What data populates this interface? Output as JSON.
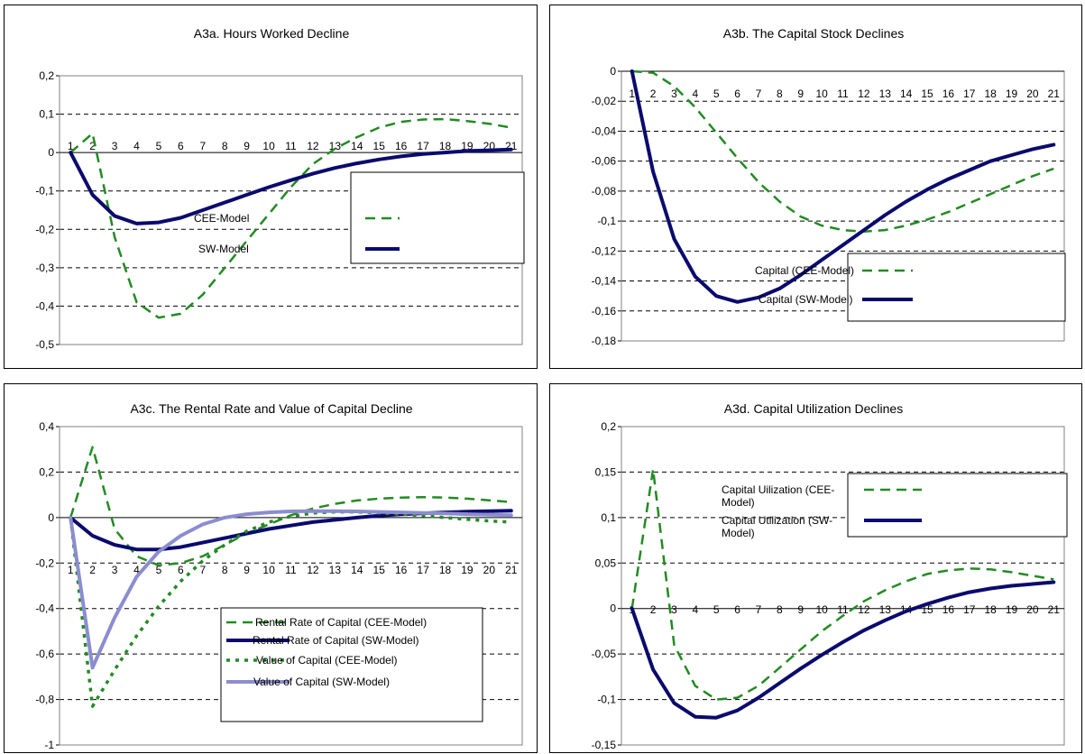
{
  "chart_data": [
    {
      "type": "line",
      "title": "A3a. Hours Worked Decline",
      "xlabel": "",
      "ylabel": "",
      "x": [
        1,
        2,
        3,
        4,
        5,
        6,
        7,
        8,
        9,
        10,
        11,
        12,
        13,
        14,
        15,
        16,
        17,
        18,
        19,
        20,
        21
      ],
      "x_labels": [
        "1",
        "2",
        "3",
        "4",
        "5",
        "6",
        "7",
        "8",
        "9",
        "10",
        "11",
        "12",
        "13",
        "14",
        "15",
        "16",
        "17",
        "18",
        "19",
        "20",
        "21"
      ],
      "ylim": [
        -0.5,
        0.2
      ],
      "y_ticks": [
        0.2,
        0.1,
        0,
        -0.1,
        -0.2,
        -0.3,
        -0.4,
        -0.5
      ],
      "y_tick_labels": [
        "0,2",
        "0,1",
        "0",
        "-0,1",
        "-0,2",
        "-0,3",
        "-0,4",
        "-0,5"
      ],
      "grid": true,
      "legend": "right",
      "series": [
        {
          "name": "CEE-Model",
          "color": "#228B22",
          "style": "dashed",
          "values": [
            0,
            0.05,
            -0.22,
            -0.39,
            -0.43,
            -0.42,
            -0.37,
            -0.3,
            -0.23,
            -0.16,
            -0.09,
            -0.03,
            0.01,
            0.04,
            0.065,
            0.08,
            0.086,
            0.087,
            0.082,
            0.075,
            0.065
          ]
        },
        {
          "name": "SW-Model",
          "color": "#0a0a6e",
          "style": "solid",
          "values": [
            0,
            -0.11,
            -0.165,
            -0.185,
            -0.182,
            -0.17,
            -0.15,
            -0.13,
            -0.11,
            -0.09,
            -0.072,
            -0.055,
            -0.04,
            -0.028,
            -0.018,
            -0.01,
            -0.004,
            0.0,
            0.004,
            0.006,
            0.008
          ]
        }
      ]
    },
    {
      "type": "line",
      "title": "A3b.  The Capital Stock Declines",
      "xlabel": "",
      "ylabel": "",
      "x": [
        1,
        2,
        3,
        4,
        5,
        6,
        7,
        8,
        9,
        10,
        11,
        12,
        13,
        14,
        15,
        16,
        17,
        18,
        19,
        20,
        21
      ],
      "x_labels": [
        "1",
        "2",
        "3",
        "4",
        "5",
        "6",
        "7",
        "8",
        "9",
        "10",
        "11",
        "12",
        "13",
        "14",
        "15",
        "16",
        "17",
        "18",
        "19",
        "20",
        "21"
      ],
      "ylim": [
        -0.18,
        0
      ],
      "y_ticks": [
        0,
        -0.02,
        -0.04,
        -0.06,
        -0.08,
        -0.1,
        -0.12,
        -0.14,
        -0.16,
        -0.18
      ],
      "y_tick_labels": [
        "0",
        "-0,02",
        "-0,04",
        "-0,06",
        "-0,08",
        "-0,1",
        "-0,12",
        "-0,14",
        "-0,16",
        "-0,18"
      ],
      "grid": true,
      "legend": "right",
      "series": [
        {
          "name": "Capital (CEE-Model)",
          "color": "#228B22",
          "style": "dashed",
          "values": [
            0,
            -0.001,
            -0.01,
            -0.024,
            -0.041,
            -0.058,
            -0.074,
            -0.087,
            -0.097,
            -0.103,
            -0.106,
            -0.107,
            -0.106,
            -0.103,
            -0.099,
            -0.094,
            -0.088,
            -0.082,
            -0.076,
            -0.07,
            -0.065
          ]
        },
        {
          "name": "Capital (SW-Model)",
          "color": "#0a0a6e",
          "style": "solid",
          "values": [
            0,
            -0.067,
            -0.112,
            -0.137,
            -0.15,
            -0.154,
            -0.151,
            -0.145,
            -0.136,
            -0.126,
            -0.116,
            -0.106,
            -0.096,
            -0.087,
            -0.079,
            -0.072,
            -0.066,
            -0.06,
            -0.056,
            -0.052,
            -0.049
          ]
        }
      ]
    },
    {
      "type": "line",
      "title": "A3c.  The Rental Rate and Value of Capital  Decline",
      "xlabel": "",
      "ylabel": "",
      "x": [
        1,
        2,
        3,
        4,
        5,
        6,
        7,
        8,
        9,
        10,
        11,
        12,
        13,
        14,
        15,
        16,
        17,
        18,
        19,
        20,
        21
      ],
      "x_labels": [
        "1",
        "2",
        "3",
        "4",
        "5",
        "6",
        "7",
        "8",
        "9",
        "10",
        "11",
        "12",
        "13",
        "14",
        "15",
        "16",
        "17",
        "18",
        "19",
        "20",
        "21"
      ],
      "ylim": [
        -1,
        0.4
      ],
      "y_ticks": [
        0.4,
        0.2,
        0,
        -0.2,
        -0.4,
        -0.6,
        -0.8,
        -1
      ],
      "y_tick_labels": [
        "0,4",
        "0,2",
        "0",
        "-0,2",
        "-0,4",
        "-0,6",
        "-0,8",
        "-1"
      ],
      "grid": true,
      "legend": "bottom-right",
      "series": [
        {
          "name": "Rental Rate of Capital (CEE-Model)",
          "color": "#228B22",
          "style": "dashed",
          "values": [
            0,
            0.31,
            -0.05,
            -0.17,
            -0.21,
            -0.2,
            -0.17,
            -0.12,
            -0.07,
            -0.03,
            0.01,
            0.04,
            0.06,
            0.075,
            0.083,
            0.088,
            0.09,
            0.088,
            0.083,
            0.076,
            0.068
          ]
        },
        {
          "name": "Rental Rate of Capital (SW-Model)",
          "color": "#0a0a6e",
          "style": "solid",
          "values": [
            0,
            -0.08,
            -0.12,
            -0.14,
            -0.14,
            -0.13,
            -0.11,
            -0.09,
            -0.07,
            -0.05,
            -0.035,
            -0.02,
            -0.01,
            0.0,
            0.008,
            0.014,
            0.019,
            0.023,
            0.026,
            0.028,
            0.03
          ]
        },
        {
          "name": "Value of Capital (CEE-Model)",
          "color": "#228B22",
          "style": "dotted",
          "values": [
            0,
            -0.83,
            -0.67,
            -0.52,
            -0.39,
            -0.28,
            -0.19,
            -0.12,
            -0.06,
            -0.02,
            0.005,
            0.02,
            0.025,
            0.025,
            0.02,
            0.015,
            0.008,
            0.0,
            -0.008,
            -0.015,
            -0.02
          ]
        },
        {
          "name": "Value of Capital (SW-Model)",
          "color": "#8c8cd0",
          "style": "solid",
          "values": [
            0,
            -0.66,
            -0.44,
            -0.26,
            -0.15,
            -0.08,
            -0.03,
            0.0,
            0.015,
            0.023,
            0.027,
            0.028,
            0.028,
            0.027,
            0.025,
            0.023,
            0.02,
            0.018,
            0.015,
            0.012,
            0.01
          ]
        }
      ]
    },
    {
      "type": "line",
      "title": "A3d.  Capital Utilization Declines",
      "xlabel": "",
      "ylabel": "",
      "x": [
        1,
        2,
        3,
        4,
        5,
        6,
        7,
        8,
        9,
        10,
        11,
        12,
        13,
        14,
        15,
        16,
        17,
        18,
        19,
        20,
        21
      ],
      "x_labels": [
        "1",
        "2",
        "3",
        "4",
        "5",
        "6",
        "7",
        "8",
        "9",
        "10",
        "11",
        "12",
        "13",
        "14",
        "15",
        "16",
        "17",
        "18",
        "19",
        "20",
        "21"
      ],
      "ylim": [
        -0.15,
        0.2
      ],
      "y_ticks": [
        0.2,
        0.15,
        0.1,
        0.05,
        0,
        -0.05,
        -0.1,
        -0.15
      ],
      "y_tick_labels": [
        "0,2",
        "0,15",
        "0,1",
        "0,05",
        "0",
        "-0,05",
        "-0,1",
        "-0,15"
      ],
      "grid": true,
      "legend": "top-right",
      "series": [
        {
          "name": "Capital Uilization (CEE-Model)",
          "legend_lines": [
            "Capital Uilization (CEE-",
            "Model)"
          ],
          "color": "#228B22",
          "style": "dashed",
          "values": [
            0,
            0.153,
            -0.04,
            -0.085,
            -0.1,
            -0.098,
            -0.085,
            -0.065,
            -0.045,
            -0.025,
            -0.008,
            0.008,
            0.02,
            0.03,
            0.038,
            0.042,
            0.044,
            0.043,
            0.04,
            0.036,
            0.032
          ]
        },
        {
          "name": "Capital Utilization (SW-Model)",
          "legend_lines": [
            "Capital Utilization (SW-",
            "Model)"
          ],
          "color": "#0a0a6e",
          "style": "solid",
          "values": [
            0,
            -0.067,
            -0.104,
            -0.119,
            -0.12,
            -0.112,
            -0.098,
            -0.082,
            -0.066,
            -0.051,
            -0.037,
            -0.024,
            -0.013,
            -0.003,
            0.005,
            0.012,
            0.018,
            0.022,
            0.025,
            0.027,
            0.029
          ]
        }
      ]
    }
  ]
}
